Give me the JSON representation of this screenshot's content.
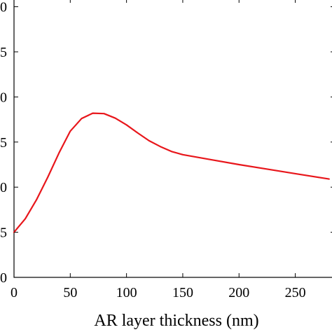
{
  "chart_data": {
    "type": "line",
    "title": "",
    "xlabel": "AR layer thickness (nm)",
    "ylabel": "",
    "xlim": [
      0,
      280
    ],
    "x_ticks": [
      "0",
      "50",
      "100",
      "150",
      "200",
      "250"
    ],
    "x_tick_values": [
      0,
      50,
      100,
      150,
      200,
      250
    ],
    "y_ticks": [
      "0",
      "5",
      "0",
      "5",
      "0",
      "5",
      "0"
    ],
    "y_tick_steps": [
      0,
      1,
      2,
      3,
      4,
      5,
      6
    ],
    "grid": false,
    "series": [
      {
        "color": "#e8161b",
        "x": [
          0,
          10,
          20,
          30,
          40,
          50,
          60,
          70,
          80,
          90,
          100,
          110,
          120,
          130,
          140,
          150,
          175,
          200,
          225,
          250,
          280
        ],
        "y": [
          1.0,
          1.3,
          1.72,
          2.22,
          2.76,
          3.24,
          3.52,
          3.64,
          3.63,
          3.53,
          3.38,
          3.2,
          3.03,
          2.9,
          2.79,
          2.72,
          2.61,
          2.5,
          2.4,
          2.3,
          2.18
        ]
      }
    ]
  }
}
